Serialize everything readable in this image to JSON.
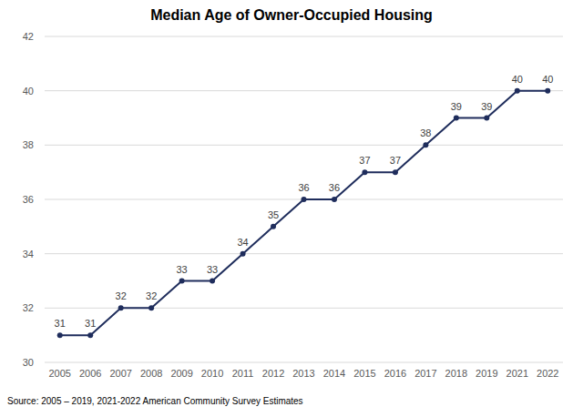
{
  "chart_data": {
    "type": "line",
    "title": "Median Age of Owner-Occupied Housing",
    "source": "Source: 2005 – 2019, 2021-2022 American Community Survey Estimates",
    "categories": [
      "2005",
      "2006",
      "2007",
      "2008",
      "2009",
      "2010",
      "2011",
      "2012",
      "2013",
      "2014",
      "2015",
      "2016",
      "2017",
      "2018",
      "2019",
      "2021",
      "2022"
    ],
    "values": [
      31,
      31,
      32,
      32,
      33,
      33,
      34,
      35,
      36,
      36,
      37,
      37,
      38,
      39,
      39,
      40,
      40
    ],
    "color": "#1f2d5c",
    "marker": "circle",
    "ylim": [
      30,
      42
    ],
    "yticks": [
      30,
      32,
      34,
      36,
      38,
      40,
      42
    ],
    "grid": true,
    "data_labels": true
  }
}
